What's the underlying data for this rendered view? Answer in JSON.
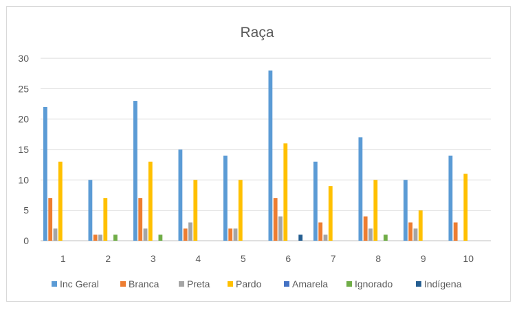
{
  "chart_data": {
    "type": "bar",
    "title": "Raça",
    "xlabel": "",
    "ylabel": "",
    "categories": [
      "1",
      "2",
      "3",
      "4",
      "5",
      "6",
      "7",
      "8",
      "9",
      "10"
    ],
    "ylim": [
      0,
      30
    ],
    "yticks": [
      0,
      5,
      10,
      15,
      20,
      25,
      30
    ],
    "grid": true,
    "legend_position": "bottom",
    "series": [
      {
        "name": "Inc Geral",
        "color": "#5b9bd5",
        "values": [
          22,
          10,
          23,
          15,
          14,
          28,
          13,
          17,
          10,
          14
        ]
      },
      {
        "name": "Branca",
        "color": "#ed7d31",
        "values": [
          7,
          1,
          7,
          2,
          2,
          7,
          3,
          4,
          3,
          3
        ]
      },
      {
        "name": "Preta",
        "color": "#a5a5a5",
        "values": [
          2,
          1,
          2,
          3,
          2,
          4,
          1,
          2,
          2,
          0
        ]
      },
      {
        "name": "Pardo",
        "color": "#ffc000",
        "values": [
          13,
          7,
          13,
          10,
          10,
          16,
          9,
          10,
          5,
          11
        ]
      },
      {
        "name": "Amarela",
        "color": "#4472c4",
        "values": [
          0,
          0,
          0,
          0,
          0,
          0,
          0,
          0,
          0,
          0
        ]
      },
      {
        "name": "Ignorado",
        "color": "#70ad47",
        "values": [
          0,
          1,
          1,
          0,
          0,
          0,
          0,
          1,
          0,
          0
        ]
      },
      {
        "name": "Indígena",
        "color": "#255e91",
        "values": [
          0,
          0,
          0,
          0,
          0,
          1,
          0,
          0,
          0,
          0
        ]
      }
    ]
  }
}
